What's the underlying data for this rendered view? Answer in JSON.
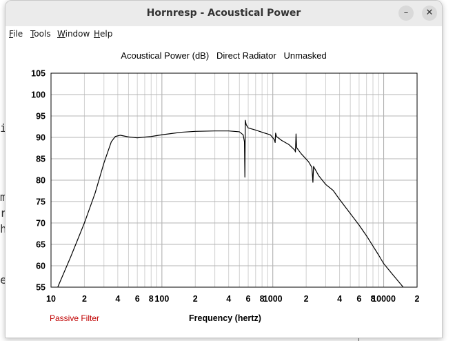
{
  "window": {
    "title": "Hornresp - Acoustical Power",
    "minimize_glyph": "–",
    "close_glyph": "✕"
  },
  "menu": {
    "items": [
      {
        "label": "File",
        "underline": "F",
        "rest": "ile"
      },
      {
        "label": "Tools",
        "underline": "T",
        "rest": "ools"
      },
      {
        "label": "Window",
        "underline": "W",
        "rest": "indow"
      },
      {
        "label": "Help",
        "underline": "H",
        "rest": "elp"
      }
    ]
  },
  "background_text": [
    "i",
    "m",
    "r",
    "h",
    "e"
  ],
  "chart_data": {
    "type": "line",
    "title": "Acoustical Power (dB)   Direct Radiator   Unmasked",
    "xlabel": "Frequency (hertz)",
    "ylabel": "",
    "xscale": "log",
    "xlim": [
      10,
      20000
    ],
    "ylim": [
      55,
      105
    ],
    "y_ticks": [
      105,
      100,
      95,
      90,
      85,
      80,
      75,
      70,
      65,
      60,
      55
    ],
    "x_tick_labels": [
      {
        "value": 10,
        "label": "10"
      },
      {
        "value": 20,
        "label": "2"
      },
      {
        "value": 40,
        "label": "4"
      },
      {
        "value": 60,
        "label": "6"
      },
      {
        "value": 80,
        "label": "8"
      },
      {
        "value": 100,
        "label": "100"
      },
      {
        "value": 200,
        "label": "2"
      },
      {
        "value": 400,
        "label": "4"
      },
      {
        "value": 600,
        "label": "6"
      },
      {
        "value": 800,
        "label": "8"
      },
      {
        "value": 1000,
        "label": "1000"
      },
      {
        "value": 2000,
        "label": "2"
      },
      {
        "value": 4000,
        "label": "4"
      },
      {
        "value": 6000,
        "label": "6"
      },
      {
        "value": 8000,
        "label": "8"
      },
      {
        "value": 10000,
        "label": "10000"
      },
      {
        "value": 20000,
        "label": "2"
      }
    ],
    "grid": true,
    "series": [
      {
        "color": "#000000",
        "points": [
          [
            11.5,
            55
          ],
          [
            15,
            62
          ],
          [
            20,
            70
          ],
          [
            25,
            77
          ],
          [
            30,
            84
          ],
          [
            35,
            89
          ],
          [
            38,
            90.2
          ],
          [
            42,
            90.5
          ],
          [
            50,
            90.1
          ],
          [
            60,
            89.9
          ],
          [
            80,
            90.2
          ],
          [
            100,
            90.6
          ],
          [
            150,
            91.2
          ],
          [
            200,
            91.4
          ],
          [
            300,
            91.5
          ],
          [
            400,
            91.5
          ],
          [
            500,
            91.3
          ],
          [
            540,
            90.6
          ],
          [
            555,
            89
          ],
          [
            560,
            80.7
          ],
          [
            565,
            94
          ],
          [
            575,
            93
          ],
          [
            600,
            92.2
          ],
          [
            700,
            91.7
          ],
          [
            800,
            91.2
          ],
          [
            950,
            90.6
          ],
          [
            1030,
            89.5
          ],
          [
            1050,
            88.8
          ],
          [
            1060,
            91
          ],
          [
            1080,
            90.2
          ],
          [
            1200,
            89.3
          ],
          [
            1400,
            88.3
          ],
          [
            1580,
            87
          ],
          [
            1600,
            86.6
          ],
          [
            1620,
            90.8
          ],
          [
            1640,
            87.6
          ],
          [
            1800,
            86.2
          ],
          [
            2100,
            84.3
          ],
          [
            2250,
            83
          ],
          [
            2300,
            79.5
          ],
          [
            2330,
            83.2
          ],
          [
            2600,
            81
          ],
          [
            3000,
            79
          ],
          [
            3500,
            77.6
          ],
          [
            4000,
            75.5
          ],
          [
            5000,
            72.2
          ],
          [
            6000,
            69.5
          ],
          [
            7000,
            67
          ],
          [
            8000,
            64.6
          ],
          [
            9000,
            62.5
          ],
          [
            10000,
            60.5
          ],
          [
            12000,
            58
          ],
          [
            15000,
            55
          ]
        ]
      }
    ]
  },
  "footer": {
    "filter_label": "Passive Filter"
  }
}
